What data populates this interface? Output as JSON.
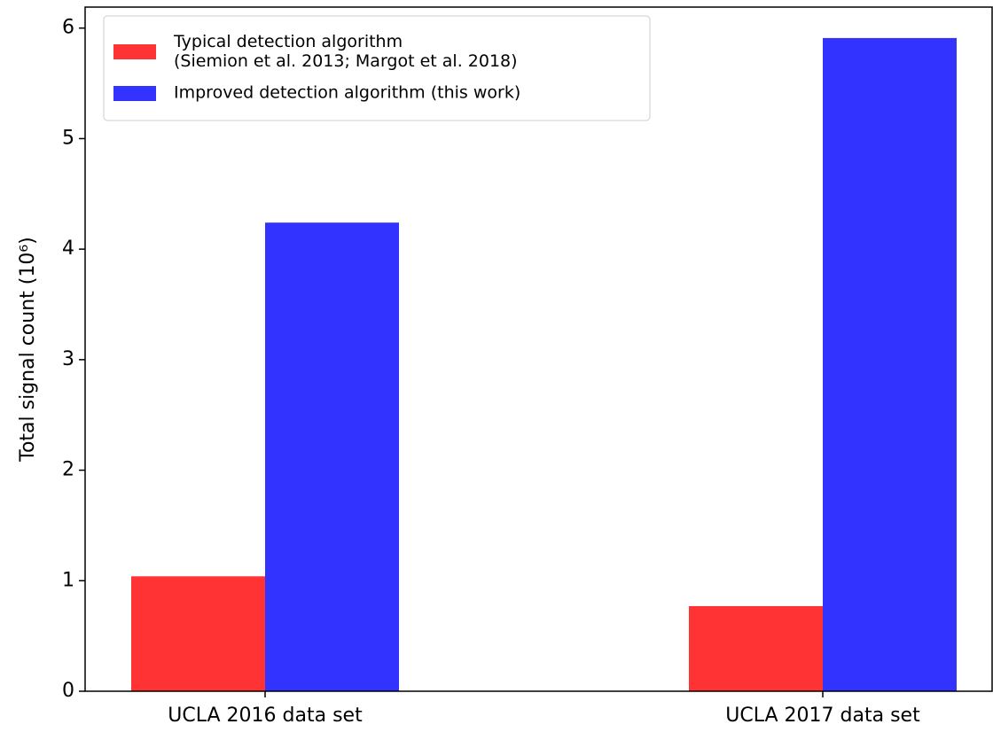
{
  "chart_data": {
    "type": "bar",
    "y_label": "Total signal count (10⁶)",
    "categories": [
      "UCLA 2016 data set",
      "UCLA 2017 data set"
    ],
    "series": [
      {
        "name": "Typical detection algorithm\n(Siemion et al. 2013; Margot et al. 2018)",
        "color": "#ff3333",
        "values": [
          1.04,
          0.77
        ]
      },
      {
        "name": "Improved detection algorithm (this work)",
        "color": "#3333ff",
        "values": [
          4.24,
          5.91
        ]
      }
    ],
    "ylim": [
      0,
      6.19
    ],
    "yticks": [
      0,
      1,
      2,
      3,
      4,
      5,
      6
    ],
    "legend": "upper left"
  }
}
